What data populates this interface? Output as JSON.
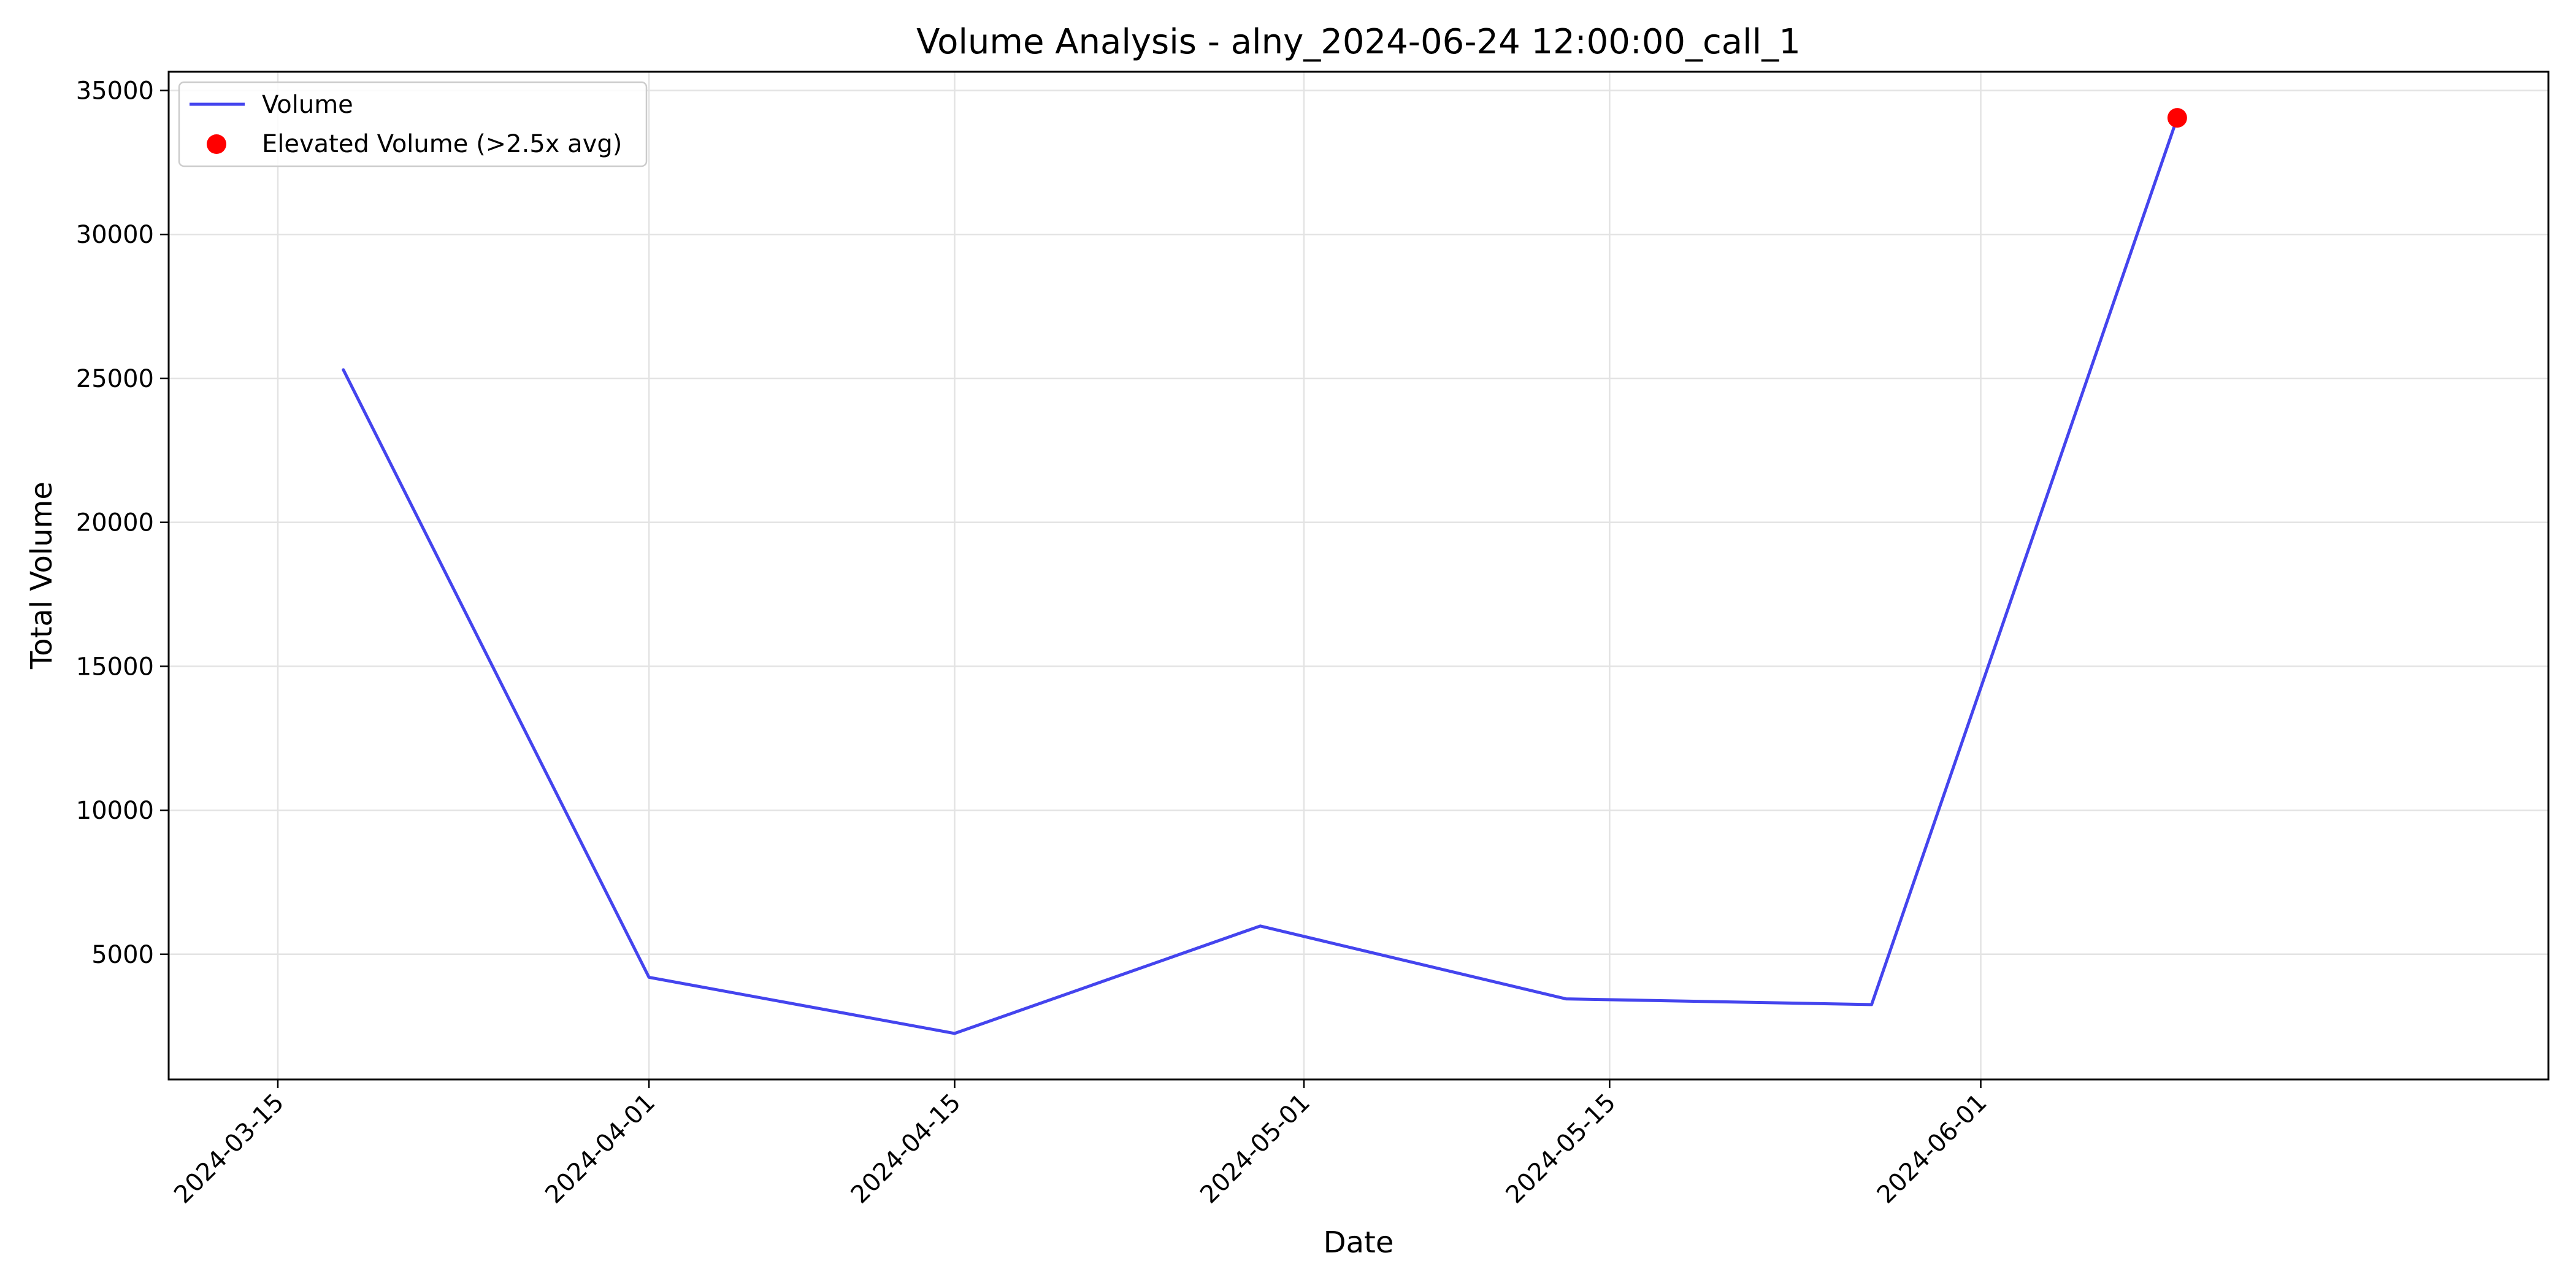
{
  "chart_data": {
    "type": "line",
    "title": "Volume Analysis - alny_2024-06-24 12:00:00_call_1",
    "xlabel": "Date",
    "ylabel": "Total Volume",
    "x_tick_labels": [
      "2024-03-15",
      "2024-04-01",
      "2024-04-15",
      "2024-05-01",
      "2024-05-15",
      "2024-06-01"
    ],
    "y_tick_labels": [
      "5000",
      "10000",
      "15000",
      "20000",
      "25000",
      "30000",
      "35000"
    ],
    "y_ticks": [
      5000,
      10000,
      15000,
      20000,
      25000,
      30000,
      35000
    ],
    "xlim": [
      "2024-03-10",
      "2024-06-27"
    ],
    "ylim": [
      650,
      35650
    ],
    "grid": true,
    "legend_position": "upper-left",
    "series": [
      {
        "name": "Volume",
        "kind": "line",
        "color": "#4444ee",
        "x": [
          "2024-03-18",
          "2024-04-01",
          "2024-04-15",
          "2024-04-29",
          "2024-05-13",
          "2024-05-27",
          "2024-06-10"
        ],
        "y": [
          25300,
          4200,
          2250,
          5980,
          3450,
          3250,
          34050
        ]
      },
      {
        "name": "Elevated Volume (>2.5x avg)",
        "kind": "scatter",
        "color": "#ff0000",
        "x": [
          "2024-06-10"
        ],
        "y": [
          34050
        ]
      }
    ]
  }
}
